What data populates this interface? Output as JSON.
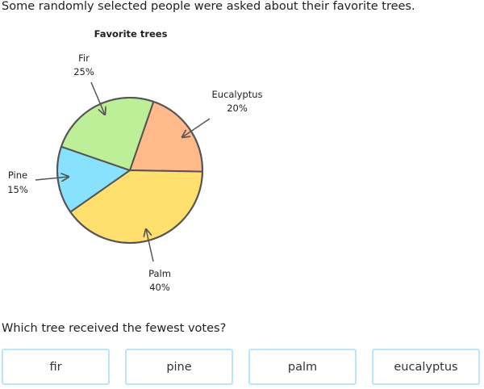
{
  "prompt": "Some randomly selected people were asked about their favorite trees.",
  "question": "Which tree received the fewest votes?",
  "answers": [
    "fir",
    "pine",
    "palm",
    "eucalyptus"
  ],
  "chart_data": {
    "type": "pie",
    "title": "Favorite trees",
    "slices": [
      {
        "label": "Eucalyptus",
        "value": 20,
        "value_label": "20%",
        "color": "#ffb98b"
      },
      {
        "label": "Palm",
        "value": 40,
        "value_label": "40%",
        "color": "#ffe06e"
      },
      {
        "label": "Pine",
        "value": 15,
        "value_label": "15%",
        "color": "#88e2fd"
      },
      {
        "label": "Fir",
        "value": 25,
        "value_label": "25%",
        "color": "#bdee98"
      }
    ]
  }
}
